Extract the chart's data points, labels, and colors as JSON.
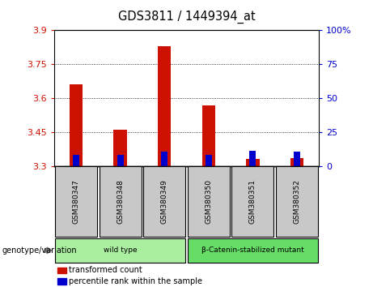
{
  "title": "GDS3811 / 1449394_at",
  "samples": [
    "GSM380347",
    "GSM380348",
    "GSM380349",
    "GSM380350",
    "GSM380351",
    "GSM380352"
  ],
  "red_values": [
    3.66,
    3.46,
    3.83,
    3.57,
    3.335,
    3.338
  ],
  "blue_values": [
    3.352,
    3.35,
    3.365,
    3.352,
    3.368,
    3.366
  ],
  "y_min": 3.3,
  "y_max": 3.9,
  "y_ticks_left": [
    3.3,
    3.45,
    3.6,
    3.75,
    3.9
  ],
  "y_ticks_right": [
    0,
    25,
    50,
    75,
    100
  ],
  "y_ticks_right_labels": [
    "0",
    "25",
    "50",
    "75",
    "100%"
  ],
  "bar_width": 0.3,
  "blue_bar_width": 0.15,
  "red_color": "#CC1100",
  "blue_color": "#0000CC",
  "groups": [
    {
      "label": "wild type",
      "indices": [
        0,
        1,
        2
      ],
      "color": "#AAEEA0"
    },
    {
      "label": "β-Catenin-stabilized mutant",
      "indices": [
        3,
        4,
        5
      ],
      "color": "#66DD66"
    }
  ],
  "legend_items": [
    {
      "label": "transformed count",
      "color": "#CC1100"
    },
    {
      "label": "percentile rank within the sample",
      "color": "#0000CC"
    }
  ],
  "genotype_label": "genotype/variation",
  "tick_bg_color": "#C8C8C8"
}
